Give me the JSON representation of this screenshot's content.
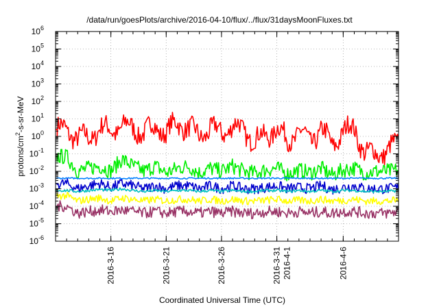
{
  "chart_data": {
    "type": "line",
    "title": "/data/run/goesPlots/archive/2016-04-10/flux/../flux/31daysMoonFluxes.txt",
    "xlabel": "Coordinated Universal Time (UTC)",
    "ylabel_parts": [
      "protons/cm",
      "2",
      "-s-sr-MeV"
    ],
    "yscale": "log",
    "ylim_exponents": [
      -6,
      6
    ],
    "y_tick_labels": [
      {
        "base": "10",
        "exp": "-6"
      },
      {
        "base": "10",
        "exp": "-5"
      },
      {
        "base": "10",
        "exp": "-4"
      },
      {
        "base": "10",
        "exp": "-3"
      },
      {
        "base": "10",
        "exp": "-2"
      },
      {
        "base": "10",
        "exp": "-1"
      },
      {
        "base": "10",
        "exp": "0"
      },
      {
        "base": "10",
        "exp": "1"
      },
      {
        "base": "10",
        "exp": "2"
      },
      {
        "base": "10",
        "exp": "3"
      },
      {
        "base": "10",
        "exp": "4"
      },
      {
        "base": "10",
        "exp": "5"
      },
      {
        "base": "10",
        "exp": "6"
      }
    ],
    "xlim": [
      "2016-03-11",
      "2016-04-11"
    ],
    "x_ticks": [
      {
        "date": "2016-03-16",
        "lines": [
          "2016-3-16"
        ]
      },
      {
        "date": "2016-03-21",
        "lines": [
          "2016-3-21"
        ]
      },
      {
        "date": "2016-03-26",
        "lines": [
          "2016-3-26"
        ]
      },
      {
        "date": "2016-03-31",
        "lines": [
          "2016-3-31",
          "2016-4-1"
        ]
      },
      {
        "date": "2016-04-06",
        "lines": [
          "2016-4-6"
        ]
      }
    ],
    "grid": true,
    "x_dates": [
      "2016-03-11",
      "2016-03-12",
      "2016-03-13",
      "2016-03-14",
      "2016-03-15",
      "2016-03-16",
      "2016-03-17",
      "2016-03-18",
      "2016-03-19",
      "2016-03-20",
      "2016-03-21",
      "2016-03-22",
      "2016-03-23",
      "2016-03-24",
      "2016-03-25",
      "2016-03-26",
      "2016-03-27",
      "2016-03-28",
      "2016-03-29",
      "2016-03-30",
      "2016-03-31",
      "2016-04-01",
      "2016-04-02",
      "2016-04-03",
      "2016-04-04",
      "2016-04-05",
      "2016-04-06",
      "2016-04-07",
      "2016-04-08",
      "2016-04-09",
      "2016-04-10",
      "2016-04-11"
    ],
    "series": [
      {
        "color": "#ff0000",
        "values": [
          2.5,
          2.5,
          0.8,
          0.8,
          3.0,
          2.0,
          4.0,
          3.0,
          1.5,
          4.0,
          1.5,
          6.0,
          3.0,
          1.0,
          3.0,
          1.5,
          4.0,
          2.0,
          0.6,
          1.0,
          3.0,
          0.5,
          2.0,
          0.5,
          2.5,
          0.3,
          2.0,
          3.0,
          0.1,
          0.1,
          0.15,
          0.4
        ]
      },
      {
        "color": "#00ee00",
        "values": [
          0.07,
          0.07,
          0.01,
          0.015,
          0.02,
          0.01,
          0.05,
          0.02,
          0.01,
          0.02,
          0.008,
          0.015,
          0.02,
          0.008,
          0.015,
          0.01,
          0.02,
          0.01,
          0.008,
          0.012,
          0.015,
          0.007,
          0.012,
          0.008,
          0.015,
          0.006,
          0.012,
          0.015,
          0.008,
          0.01,
          0.01,
          0.012
        ]
      },
      {
        "color": "#0080ff",
        "values": [
          0.004,
          0.004,
          0.004,
          0.004,
          0.004,
          0.004,
          0.004,
          0.004,
          0.004,
          0.004,
          0.004,
          0.004,
          0.004,
          0.004,
          0.004,
          0.004,
          0.004,
          0.004,
          0.004,
          0.004,
          0.004,
          0.004,
          0.004,
          0.004,
          0.004,
          0.004,
          0.004,
          0.004,
          0.004,
          0.004,
          0.004,
          0.004
        ]
      },
      {
        "color": "#0000cc",
        "values": [
          0.002,
          0.002,
          0.001,
          0.0015,
          0.002,
          0.0012,
          0.002,
          0.0015,
          0.001,
          0.0015,
          0.001,
          0.0015,
          0.0015,
          0.001,
          0.0015,
          0.001,
          0.0015,
          0.001,
          0.001,
          0.0012,
          0.0015,
          0.001,
          0.0012,
          0.001,
          0.0015,
          0.0009,
          0.0012,
          0.0015,
          0.001,
          0.001,
          0.001,
          0.0012
        ]
      },
      {
        "color": "#00c0c0",
        "values": [
          0.0008,
          0.0008,
          0.0007,
          0.0008,
          0.0009,
          0.0008,
          0.001,
          0.0008,
          0.0007,
          0.0008,
          0.0007,
          0.0008,
          0.0008,
          0.0007,
          0.0008,
          0.0007,
          0.0008,
          0.0007,
          0.0007,
          0.0008,
          0.0008,
          0.0007,
          0.0008,
          0.0007,
          0.0008,
          0.0007,
          0.0008,
          0.0008,
          0.0007,
          0.0007,
          0.0007,
          0.0008
        ]
      },
      {
        "color": "#ffff00",
        "values": [
          0.0004,
          0.0004,
          0.0002,
          0.00025,
          0.0003,
          0.0002,
          0.0003,
          0.00025,
          0.0002,
          0.00025,
          0.0002,
          0.00025,
          0.00025,
          0.0002,
          0.00025,
          0.0002,
          0.00025,
          0.0002,
          0.0002,
          0.00022,
          0.00025,
          0.0002,
          0.00022,
          0.0002,
          0.00025,
          0.0002,
          0.00022,
          0.00025,
          0.0002,
          0.0002,
          0.0002,
          0.00022
        ]
      },
      {
        "color": "#993366",
        "values": [
          0.0001,
          0.0001,
          4e-05,
          5e-05,
          6e-05,
          5e-05,
          6e-05,
          5e-05,
          4e-05,
          5e-05,
          4e-05,
          5e-05,
          5e-05,
          4e-05,
          5e-05,
          4e-05,
          5e-05,
          4e-05,
          4e-05,
          5e-05,
          5e-05,
          4e-05,
          5e-05,
          4e-05,
          5e-05,
          4e-05,
          5e-05,
          5e-05,
          4e-05,
          4e-05,
          4e-05,
          5e-05
        ]
      }
    ]
  }
}
